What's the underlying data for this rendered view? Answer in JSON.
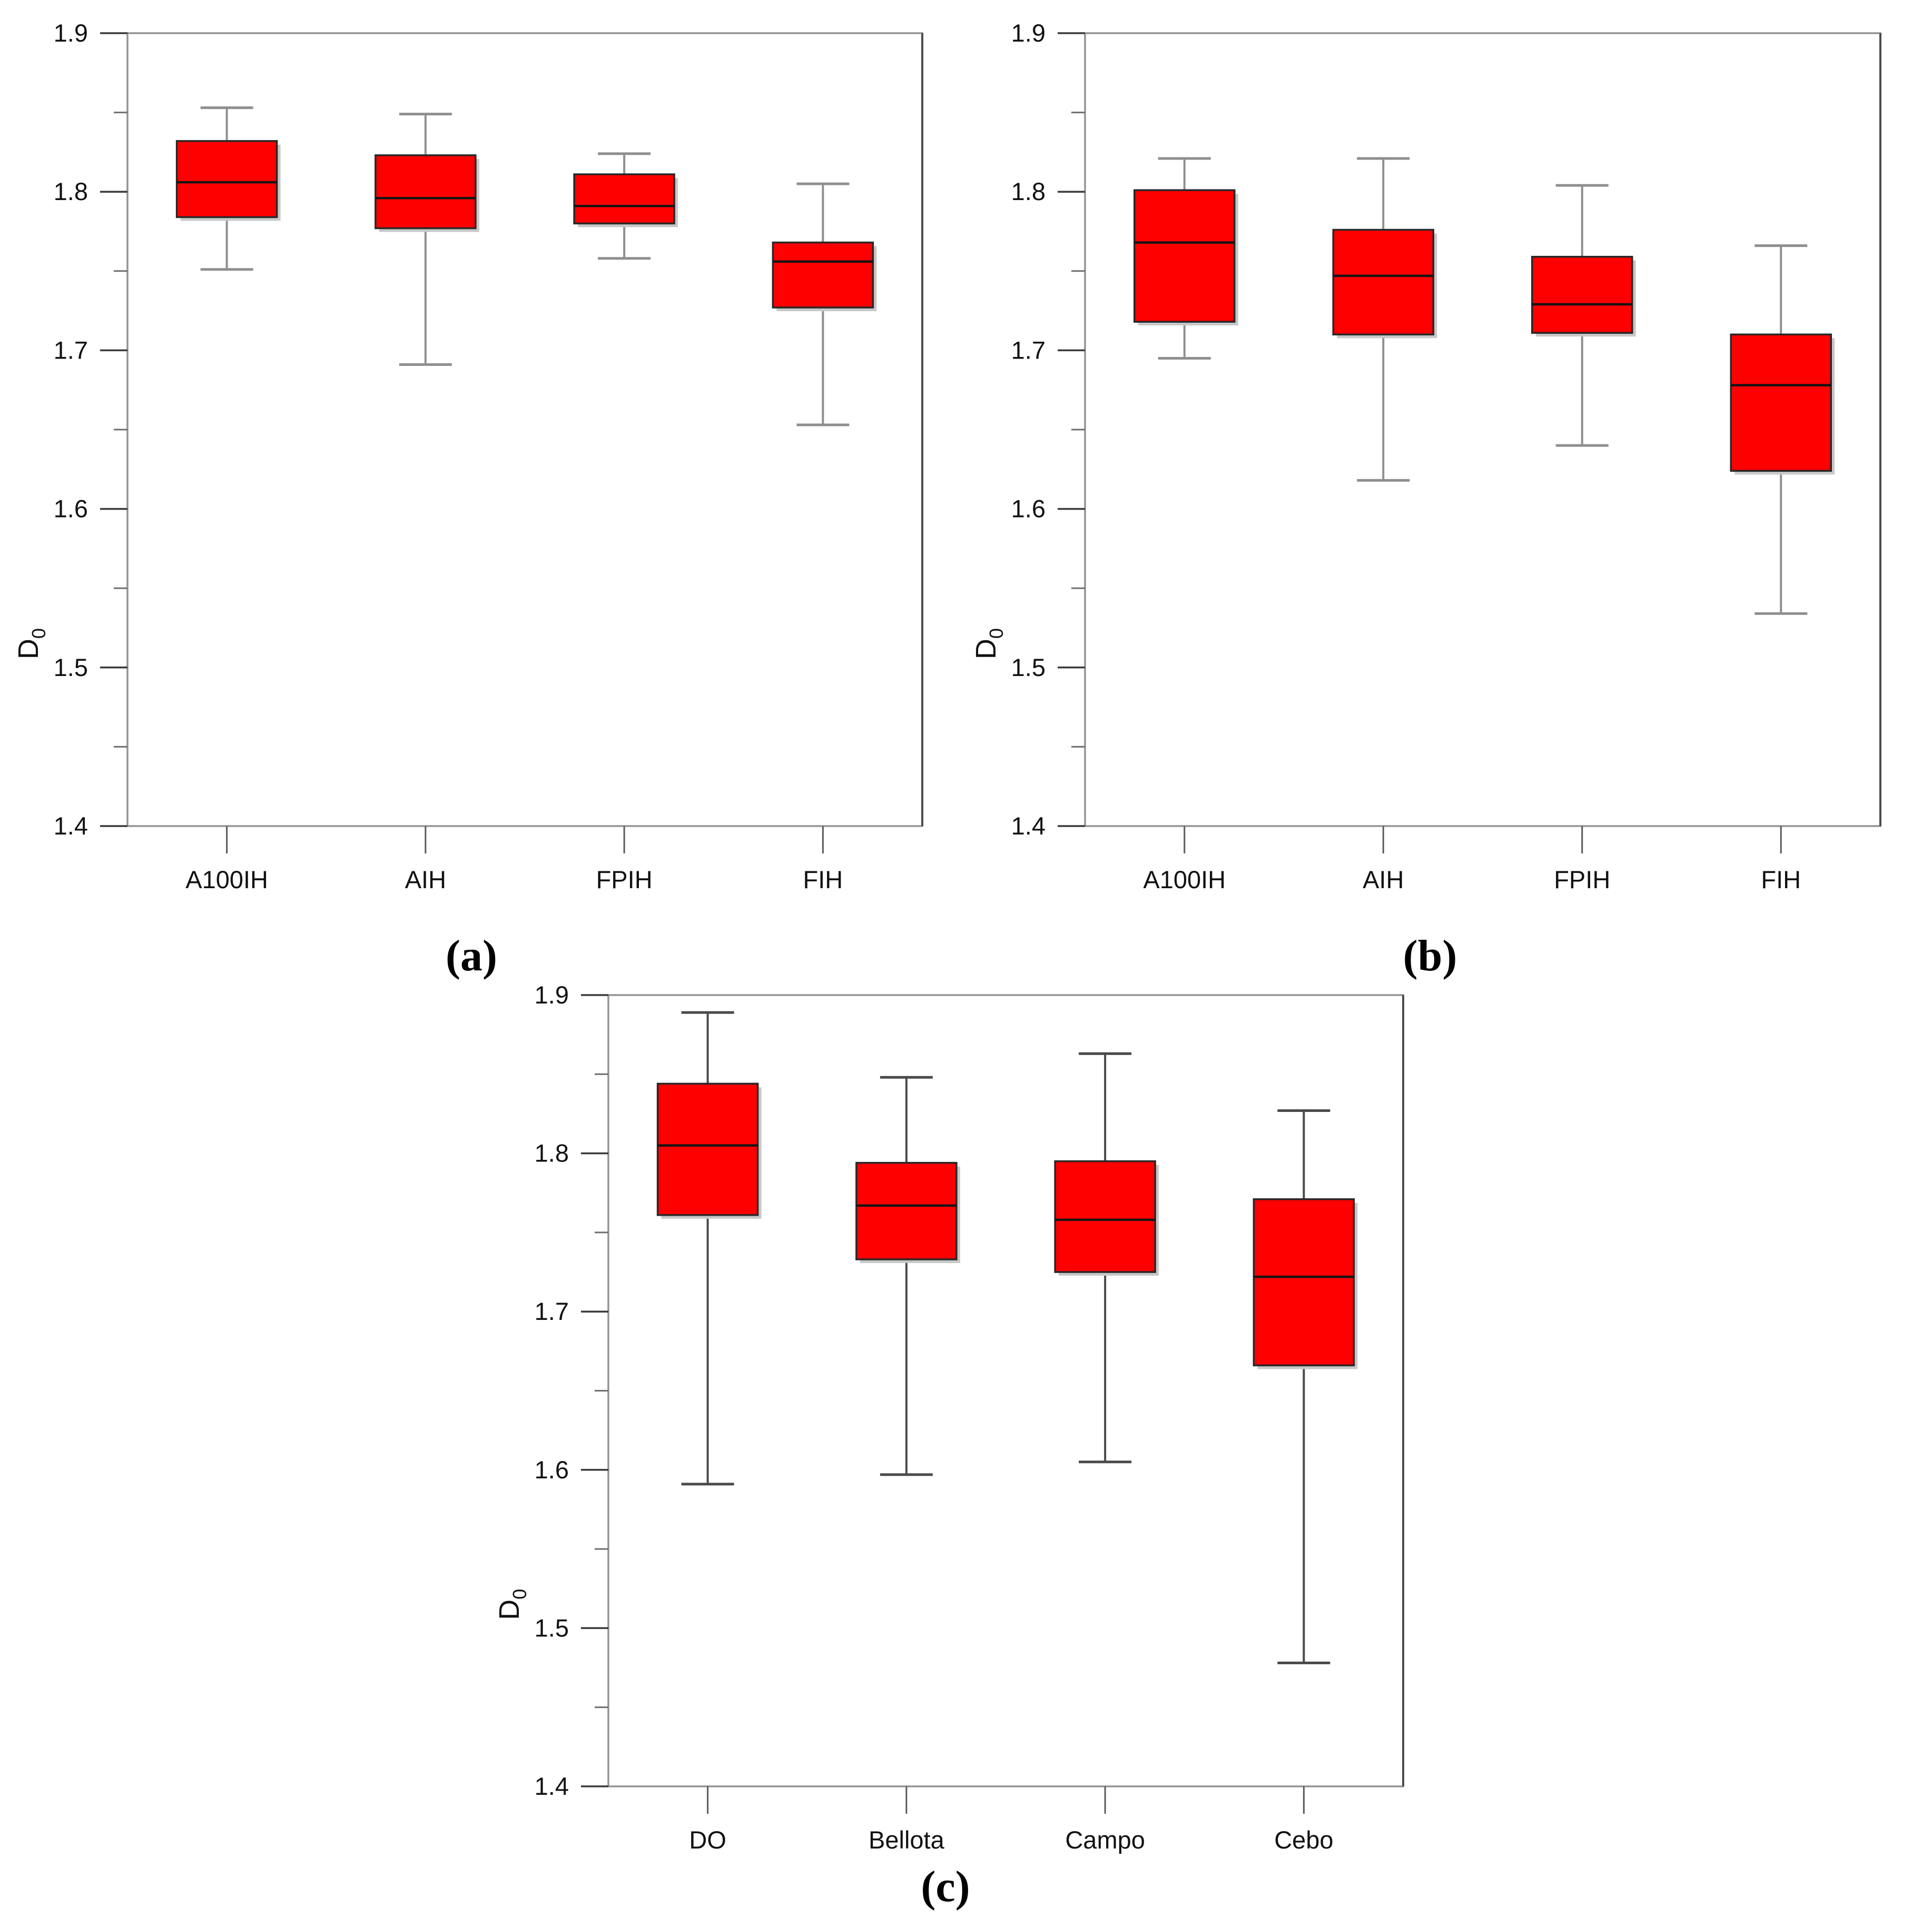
{
  "figure": {
    "background": "#ffffff",
    "description": "Three box-and-whisker plots of fractal dimension D0"
  },
  "chart_data": [
    {
      "id": "a",
      "type": "box",
      "caption": "(a)",
      "title": "",
      "xlabel": "",
      "ylabel": {
        "base": "D",
        "sub": "0"
      },
      "ylim": [
        1.4,
        1.9
      ],
      "yticks": [
        1.9,
        1.8,
        1.7,
        1.6,
        1.5,
        1.4
      ],
      "yticks_minor": [
        1.85,
        1.75,
        1.65,
        1.55,
        1.45
      ],
      "grid": false,
      "legend": false,
      "categories": [
        "A100IH",
        "AIH",
        "FPIH",
        "FIH"
      ],
      "series": [
        {
          "name": "A100IH",
          "low": 1.751,
          "q1": 1.784,
          "median": 1.806,
          "q3": 1.832,
          "high": 1.853
        },
        {
          "name": "AIH",
          "low": 1.691,
          "q1": 1.777,
          "median": 1.796,
          "q3": 1.823,
          "high": 1.849
        },
        {
          "name": "FPIH",
          "low": 1.758,
          "q1": 1.78,
          "median": 1.791,
          "q3": 1.811,
          "high": 1.824
        },
        {
          "name": "FIH",
          "low": 1.653,
          "q1": 1.727,
          "median": 1.756,
          "q3": 1.768,
          "high": 1.805
        }
      ],
      "colors": {
        "box_fill": "#ff0000",
        "box_stroke": "#282828",
        "median": "#141414",
        "whisker": "#8f8f8f",
        "frame": "#949494",
        "frame_right": "#4c4c4c",
        "tick": "#3a3a3a",
        "tick_minor": "#6e6e6e",
        "x_tick": "#5a5a5a",
        "shadow": "#c8c8c8"
      }
    },
    {
      "id": "b",
      "type": "box",
      "caption": "(b)",
      "title": "",
      "xlabel": "",
      "ylabel": {
        "base": "D",
        "sub": "0"
      },
      "ylim": [
        1.4,
        1.9
      ],
      "yticks": [
        1.9,
        1.8,
        1.7,
        1.6,
        1.5,
        1.4
      ],
      "yticks_minor": [
        1.85,
        1.75,
        1.65,
        1.55,
        1.45
      ],
      "grid": false,
      "legend": false,
      "categories": [
        "A100IH",
        "AIH",
        "FPIH",
        "FIH"
      ],
      "series": [
        {
          "name": "A100IH",
          "low": 1.695,
          "q1": 1.718,
          "median": 1.768,
          "q3": 1.801,
          "high": 1.821
        },
        {
          "name": "AIH",
          "low": 1.618,
          "q1": 1.71,
          "median": 1.747,
          "q3": 1.776,
          "high": 1.821
        },
        {
          "name": "FPIH",
          "low": 1.64,
          "q1": 1.711,
          "median": 1.729,
          "q3": 1.759,
          "high": 1.804
        },
        {
          "name": "FIH",
          "low": 1.534,
          "q1": 1.624,
          "median": 1.678,
          "q3": 1.71,
          "high": 1.766
        }
      ],
      "colors": {
        "box_fill": "#ff0000",
        "box_stroke": "#282828",
        "median": "#141414",
        "whisker": "#8f8f8f",
        "frame": "#949494",
        "frame_right": "#4c4c4c",
        "tick": "#3a3a3a",
        "tick_minor": "#6e6e6e",
        "x_tick": "#5a5a5a",
        "shadow": "#c8c8c8"
      }
    },
    {
      "id": "c",
      "type": "box",
      "caption": "(c)",
      "title": "",
      "xlabel": "",
      "ylabel": {
        "base": "D",
        "sub": "0"
      },
      "ylim": [
        1.4,
        1.9
      ],
      "yticks": [
        1.9,
        1.8,
        1.7,
        1.6,
        1.5,
        1.4
      ],
      "yticks_minor": [
        1.85,
        1.75,
        1.65,
        1.55,
        1.45
      ],
      "grid": false,
      "legend": false,
      "categories": [
        "DO",
        "Bellota",
        "Campo",
        "Cebo"
      ],
      "series": [
        {
          "name": "DO",
          "low": 1.591,
          "q1": 1.761,
          "median": 1.805,
          "q3": 1.844,
          "high": 1.889
        },
        {
          "name": "Bellota",
          "low": 1.597,
          "q1": 1.733,
          "median": 1.767,
          "q3": 1.794,
          "high": 1.848
        },
        {
          "name": "Campo",
          "low": 1.605,
          "q1": 1.725,
          "median": 1.758,
          "q3": 1.795,
          "high": 1.863
        },
        {
          "name": "Cebo",
          "low": 1.478,
          "q1": 1.666,
          "median": 1.722,
          "q3": 1.771,
          "high": 1.827
        }
      ],
      "colors": {
        "box_fill": "#ff0000",
        "box_stroke": "#282828",
        "median": "#141414",
        "whisker": "#4a4a4a",
        "frame": "#949494",
        "frame_right": "#4c4c4c",
        "tick": "#3a3a3a",
        "tick_minor": "#6e6e6e",
        "x_tick": "#5a5a5a",
        "shadow": "#c8c8c8"
      }
    }
  ]
}
